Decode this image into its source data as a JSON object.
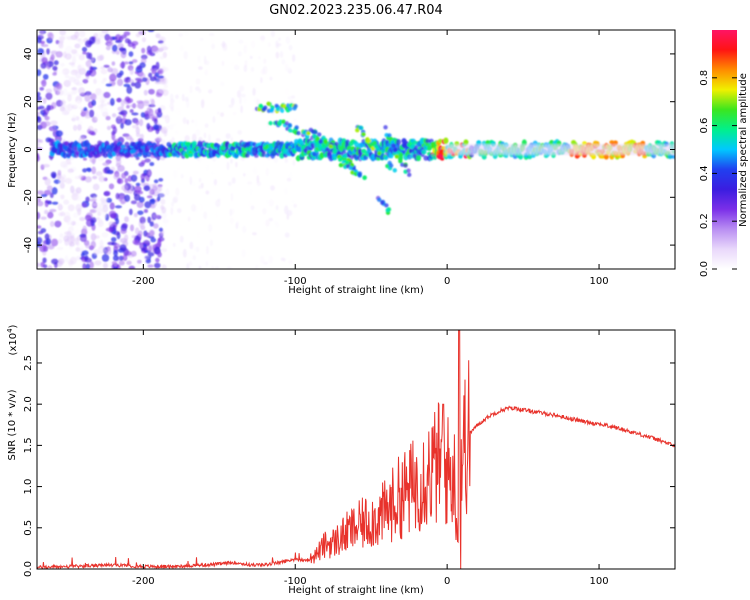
{
  "title": "GN02.2023.235.06.47.R04",
  "colors": {
    "line": "#e8322b",
    "colormap": [
      "#ffffff",
      "#e9d8fb",
      "#b98ef2",
      "#7b2fe8",
      "#3b1de0",
      "#2040f0",
      "#00c8ff",
      "#00f08c",
      "#3ce61e",
      "#f0f000",
      "#ff8c00",
      "#ff1414",
      "#ff1464"
    ]
  },
  "chart_data": [
    {
      "type": "heatmap",
      "xlabel": "Height of straight line (km)",
      "ylabel": "Frequency (Hz)",
      "xlim": [
        -270,
        150
      ],
      "ylim": [
        -50,
        50
      ],
      "xticks": [
        -200,
        -100,
        0,
        100
      ],
      "xtick_labels": [
        "-200",
        "-100",
        "0",
        "100"
      ],
      "yticks": [
        -40,
        -20,
        0,
        20,
        40
      ],
      "ytick_labels": [
        "-40",
        "-20",
        "0",
        "20",
        "40"
      ],
      "colorbar": {
        "label": "Normalized spectral amplitude",
        "range": [
          0,
          1
        ],
        "ticks": [
          0,
          0.2,
          0.4,
          0.6,
          0.8
        ],
        "tick_labels": [
          "0.0",
          "0.2",
          "0.4",
          "0.6",
          "0.8"
        ]
      },
      "grid": false
    },
    {
      "type": "line",
      "xlabel": "Height of straight line (km)",
      "ylabel": "SNR (10 * v/v)",
      "scale_label": "(x10",
      "scale_exp": "4",
      "scale_close": ")",
      "xlim": [
        -270,
        150
      ],
      "ylim": [
        0,
        2.9
      ],
      "xticks": [
        -200,
        -100,
        0,
        100
      ],
      "xtick_labels": [
        "-200",
        "-100",
        "0",
        "100"
      ],
      "yticks": [
        0,
        0.5,
        1.0,
        1.5,
        2.0,
        2.5
      ],
      "ytick_labels": [
        "0.0",
        "0.5",
        "1.0",
        "1.5",
        "2.0",
        "2.5"
      ],
      "series": [
        {
          "x": [
            -270,
            -250,
            -230,
            -220,
            -200,
            -180,
            -160,
            -150,
            -140,
            -130,
            -120,
            -110,
            -105,
            -100,
            -95,
            -90,
            -85,
            -80,
            -75,
            -70,
            -65,
            -60,
            -55,
            -50,
            -45,
            -40,
            -35,
            -30,
            -25,
            -20,
            -15,
            -10,
            -5,
            0,
            5,
            8,
            9,
            10,
            15,
            20,
            25,
            30,
            35,
            40,
            45,
            50,
            60,
            70,
            80,
            90,
            100,
            110,
            120,
            130,
            140,
            150
          ],
          "y": [
            0.02,
            0.03,
            0.04,
            0.05,
            0.03,
            0.03,
            0.05,
            0.06,
            0.08,
            0.05,
            0.05,
            0.08,
            0.1,
            0.12,
            0.1,
            0.12,
            0.2,
            0.3,
            0.32,
            0.38,
            0.45,
            0.5,
            0.55,
            0.6,
            0.62,
            0.7,
            0.8,
            0.9,
            0.95,
            1.05,
            1.15,
            1.2,
            1.3,
            1.2,
            1.1,
            0.05,
            1.3,
            1.45,
            1.65,
            1.75,
            1.82,
            1.88,
            1.92,
            1.95,
            1.95,
            1.93,
            1.9,
            1.87,
            1.83,
            1.79,
            1.76,
            1.72,
            1.67,
            1.62,
            1.56,
            1.49
          ]
        }
      ],
      "grid": false
    }
  ]
}
